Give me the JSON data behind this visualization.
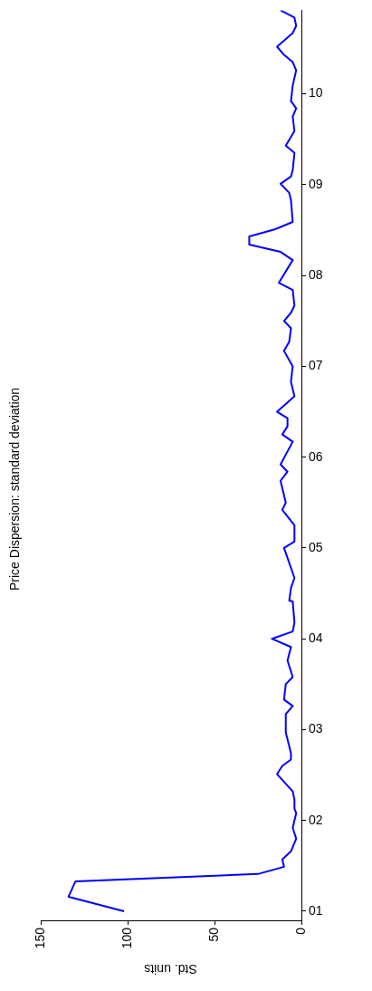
{
  "chart_data": {
    "type": "line",
    "title": "Price Dispersion: standard deviation",
    "xlabel": "Std. units",
    "x": [
      102,
      134,
      130,
      25,
      10,
      11,
      6,
      3,
      5,
      3,
      4,
      4,
      5,
      14,
      11,
      6,
      6,
      9,
      9,
      5,
      10,
      9,
      5,
      8,
      6,
      17,
      5,
      4,
      5,
      7,
      6,
      4,
      10,
      4,
      4,
      11,
      9,
      12,
      8,
      12,
      5,
      11,
      8,
      8,
      14,
      4,
      6,
      5,
      10,
      7,
      6,
      10,
      6,
      4,
      5,
      13,
      5,
      12,
      30,
      30,
      15,
      5,
      6,
      7,
      12,
      6,
      5,
      4,
      9,
      4,
      5,
      3,
      6,
      5,
      3,
      5,
      10,
      14,
      5,
      3,
      4,
      12
    ],
    "series": [
      {
        "color": "#0000ff",
        "values": [
          2001.0,
          2001.16,
          2001.33,
          2001.41,
          2001.49,
          2001.57,
          2001.66,
          2001.8,
          2001.92,
          2002.08,
          2002.13,
          2002.23,
          2002.32,
          2002.51,
          2002.6,
          2002.67,
          2002.74,
          2002.97,
          2003.17,
          2003.26,
          2003.33,
          2003.5,
          2003.58,
          2003.76,
          2003.91,
          2004.0,
          2004.08,
          2004.18,
          2004.41,
          2004.42,
          2004.56,
          2004.67,
          2005.0,
          2005.07,
          2005.25,
          2005.42,
          2005.5,
          2005.74,
          2005.84,
          2005.92,
          2006.17,
          2006.25,
          2006.34,
          2006.43,
          2006.5,
          2006.67,
          2006.83,
          2007.0,
          2007.17,
          2007.27,
          2007.42,
          2007.5,
          2007.59,
          2007.67,
          2007.84,
          2007.92,
          2008.17,
          2008.26,
          2008.34,
          2008.43,
          2008.51,
          2008.59,
          2008.83,
          2008.91,
          2009.01,
          2009.09,
          2009.16,
          2009.35,
          2009.43,
          2009.59,
          2009.75,
          2009.84,
          2009.92,
          2010.09,
          2010.26,
          2010.35,
          2010.43,
          2010.52,
          2010.67,
          2010.75,
          2010.84,
          2010.92
        ]
      }
    ],
    "ylim": [
      2000.9,
      2010.92
    ],
    "yticks": [
      {
        "value": 2001,
        "label": "01"
      },
      {
        "value": 2002,
        "label": "02"
      },
      {
        "value": 2003,
        "label": "03"
      },
      {
        "value": 2004,
        "label": "04"
      },
      {
        "value": 2005,
        "label": "05"
      },
      {
        "value": 2006,
        "label": "06"
      },
      {
        "value": 2007,
        "label": "07"
      },
      {
        "value": 2008,
        "label": "08"
      },
      {
        "value": 2009,
        "label": "09"
      },
      {
        "value": 2010,
        "label": "10"
      }
    ],
    "xlim": [
      150,
      0
    ],
    "xticks": [
      150,
      100,
      50,
      0
    ],
    "grid": false,
    "legend": false,
    "marker": "none",
    "line_style": "solid"
  }
}
